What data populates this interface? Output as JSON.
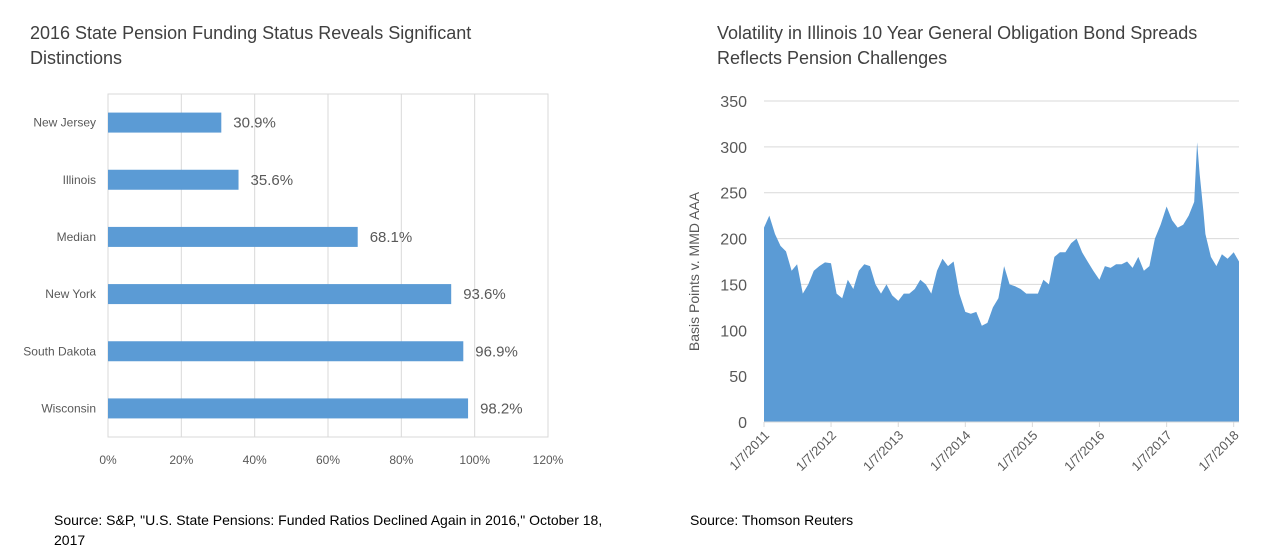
{
  "charts": {
    "left": {
      "title": "2016 State Pension Funding Status Reveals Significant Distinctions",
      "source": "Source: S&P, \"U.S. State Pensions: Funded Ratios Declined Again in 2016,\" October 18, 2017"
    },
    "right": {
      "title": "Volatility in Illinois 10 Year General Obligation Bond Spreads Reflects Pension Challenges",
      "source": "Source: Thomson Reuters"
    }
  },
  "colors": {
    "series": "#5b9bd5",
    "axis_text": "#595959",
    "grid": "#d9d9d9",
    "title": "#404040"
  },
  "chart_data": [
    {
      "type": "bar",
      "orientation": "horizontal",
      "categories": [
        "New Jersey",
        "Illinois",
        "Median",
        "New York",
        "South Dakota",
        "Wisconsin"
      ],
      "values": [
        30.9,
        35.6,
        68.1,
        93.6,
        96.9,
        98.2
      ],
      "data_labels": [
        "30.9%",
        "35.6%",
        "68.1%",
        "93.6%",
        "96.9%",
        "98.2%"
      ],
      "xlim": [
        0,
        120
      ],
      "x_ticks": [
        "0%",
        "20%",
        "40%",
        "60%",
        "80%",
        "100%",
        "120%"
      ],
      "grid": true
    },
    {
      "type": "area",
      "ylabel": "Basis Points v. MMD AAA",
      "ylim": [
        0,
        350
      ],
      "y_ticks": [
        "0",
        "50",
        "100",
        "150",
        "200",
        "250",
        "300",
        "350"
      ],
      "x_ticks": [
        "1/7/2011",
        "1/7/2012",
        "1/7/2013",
        "1/7/2014",
        "1/7/2015",
        "1/7/2016",
        "1/7/2017",
        "1/7/2018"
      ],
      "xlim": [
        "1/7/2011",
        "2/5/2018"
      ],
      "grid": true,
      "points": [
        [
          "1/7/2011",
          212
        ],
        [
          "2/5/2011",
          225
        ],
        [
          "3/8/2011",
          205
        ],
        [
          "4/7/2011",
          192
        ],
        [
          "5/7/2011",
          186
        ],
        [
          "6/6/2011",
          165
        ],
        [
          "7/6/2011",
          172
        ],
        [
          "8/6/2011",
          140
        ],
        [
          "9/5/2011",
          150
        ],
        [
          "10/5/2011",
          165
        ],
        [
          "11/4/2011",
          170
        ],
        [
          "12/5/2011",
          174
        ],
        [
          "1/7/2012",
          173
        ],
        [
          "2/6/2012",
          140
        ],
        [
          "3/8/2012",
          135
        ],
        [
          "4/7/2012",
          155
        ],
        [
          "5/7/2012",
          145
        ],
        [
          "6/6/2012",
          165
        ],
        [
          "7/6/2012",
          172
        ],
        [
          "8/6/2012",
          170
        ],
        [
          "9/5/2012",
          150
        ],
        [
          "10/5/2012",
          140
        ],
        [
          "11/4/2012",
          150
        ],
        [
          "12/5/2012",
          138
        ],
        [
          "1/7/2013",
          132
        ],
        [
          "2/6/2013",
          140
        ],
        [
          "3/8/2013",
          140
        ],
        [
          "4/7/2013",
          145
        ],
        [
          "5/7/2013",
          155
        ],
        [
          "6/6/2013",
          150
        ],
        [
          "7/6/2013",
          140
        ],
        [
          "8/6/2013",
          165
        ],
        [
          "9/5/2013",
          178
        ],
        [
          "10/5/2013",
          170
        ],
        [
          "11/4/2013",
          175
        ],
        [
          "12/5/2013",
          140
        ],
        [
          "1/7/2014",
          120
        ],
        [
          "2/6/2014",
          118
        ],
        [
          "3/8/2014",
          120
        ],
        [
          "4/7/2014",
          105
        ],
        [
          "5/7/2014",
          108
        ],
        [
          "6/6/2014",
          125
        ],
        [
          "7/6/2014",
          135
        ],
        [
          "8/6/2014",
          170
        ],
        [
          "9/5/2014",
          150
        ],
        [
          "10/5/2014",
          148
        ],
        [
          "11/4/2014",
          145
        ],
        [
          "12/5/2014",
          140
        ],
        [
          "1/7/2015",
          140
        ],
        [
          "2/6/2015",
          140
        ],
        [
          "3/8/2015",
          155
        ],
        [
          "4/7/2015",
          150
        ],
        [
          "5/7/2015",
          180
        ],
        [
          "6/6/2015",
          185
        ],
        [
          "7/6/2015",
          185
        ],
        [
          "8/6/2015",
          195
        ],
        [
          "9/5/2015",
          200
        ],
        [
          "10/5/2015",
          185
        ],
        [
          "11/4/2015",
          175
        ],
        [
          "12/5/2015",
          165
        ],
        [
          "1/7/2016",
          155
        ],
        [
          "2/6/2016",
          170
        ],
        [
          "3/8/2016",
          168
        ],
        [
          "4/7/2016",
          172
        ],
        [
          "5/7/2016",
          172
        ],
        [
          "6/6/2016",
          175
        ],
        [
          "7/6/2016",
          168
        ],
        [
          "8/6/2016",
          180
        ],
        [
          "9/5/2016",
          165
        ],
        [
          "10/5/2016",
          170
        ],
        [
          "11/4/2016",
          200
        ],
        [
          "12/5/2016",
          215
        ],
        [
          "1/7/2017",
          235
        ],
        [
          "2/6/2017",
          220
        ],
        [
          "3/8/2017",
          212
        ],
        [
          "4/7/2017",
          215
        ],
        [
          "5/7/2017",
          225
        ],
        [
          "6/6/2017",
          240
        ],
        [
          "6/22/2017",
          305
        ],
        [
          "7/6/2017",
          270
        ],
        [
          "7/26/2017",
          230
        ],
        [
          "8/6/2017",
          205
        ],
        [
          "9/5/2017",
          180
        ],
        [
          "10/5/2017",
          170
        ],
        [
          "11/4/2017",
          183
        ],
        [
          "12/5/2017",
          178
        ],
        [
          "1/7/2018",
          185
        ],
        [
          "2/5/2018",
          175
        ]
      ]
    }
  ]
}
